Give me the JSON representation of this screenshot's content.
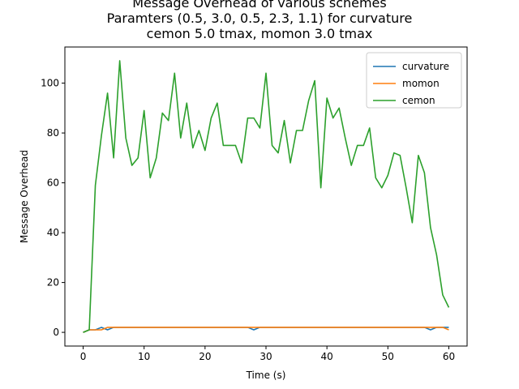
{
  "chart_data": {
    "type": "line",
    "title_lines": [
      "Message Overhead of various schemes",
      "Paramters (0.5, 3.0, 0.5, 2.3, 1.1) for curvature",
      "cemon 5.0 tmax, momon 3.0 tmax"
    ],
    "xlabel": "Time (s)",
    "ylabel": "Message Overhead",
    "xlim": [
      -3,
      63
    ],
    "ylim": [
      -5.5,
      114.5
    ],
    "xticks": [
      0,
      10,
      20,
      30,
      40,
      50,
      60
    ],
    "yticks": [
      0,
      20,
      40,
      60,
      80,
      100
    ],
    "grid": false,
    "legend": "top-right",
    "x": [
      0,
      1,
      2,
      3,
      4,
      5,
      6,
      7,
      8,
      9,
      10,
      11,
      12,
      13,
      14,
      15,
      16,
      17,
      18,
      19,
      20,
      21,
      22,
      23,
      24,
      25,
      26,
      27,
      28,
      29,
      30,
      31,
      32,
      33,
      34,
      35,
      36,
      37,
      38,
      39,
      40,
      41,
      42,
      43,
      44,
      45,
      46,
      47,
      48,
      49,
      50,
      51,
      52,
      53,
      54,
      55,
      56,
      57,
      58,
      59,
      60
    ],
    "series": [
      {
        "name": "curvature",
        "color": "#1f77b4",
        "values": [
          0,
          1,
          1,
          2,
          1,
          2,
          2,
          2,
          2,
          2,
          2,
          2,
          2,
          2,
          2,
          2,
          2,
          2,
          2,
          2,
          2,
          2,
          2,
          2,
          2,
          2,
          2,
          2,
          1,
          2,
          2,
          2,
          2,
          2,
          2,
          2,
          2,
          2,
          2,
          2,
          2,
          2,
          2,
          2,
          2,
          2,
          2,
          2,
          2,
          2,
          2,
          2,
          2,
          2,
          2,
          2,
          2,
          1,
          2,
          2,
          2
        ]
      },
      {
        "name": "momon",
        "color": "#ff7f0e",
        "values": [
          0,
          1,
          1,
          1,
          2,
          2,
          2,
          2,
          2,
          2,
          2,
          2,
          2,
          2,
          2,
          2,
          2,
          2,
          2,
          2,
          2,
          2,
          2,
          2,
          2,
          2,
          2,
          2,
          2,
          2,
          2,
          2,
          2,
          2,
          2,
          2,
          2,
          2,
          2,
          2,
          2,
          2,
          2,
          2,
          2,
          2,
          2,
          2,
          2,
          2,
          2,
          2,
          2,
          2,
          2,
          2,
          2,
          2,
          2,
          2,
          1
        ]
      },
      {
        "name": "cemon",
        "color": "#2ca02c",
        "values": [
          0,
          1,
          59,
          79,
          96,
          70,
          109,
          78,
          67,
          70,
          89,
          62,
          70,
          88,
          85,
          104,
          78,
          92,
          74,
          81,
          73,
          86,
          92,
          75,
          75,
          75,
          68,
          86,
          86,
          82,
          104,
          75,
          72,
          85,
          68,
          81,
          81,
          93,
          101,
          58,
          94,
          86,
          90,
          78,
          67,
          75,
          75,
          82,
          62,
          58,
          63,
          72,
          71,
          58,
          44,
          71,
          64,
          42,
          31,
          15,
          10
        ]
      }
    ]
  }
}
